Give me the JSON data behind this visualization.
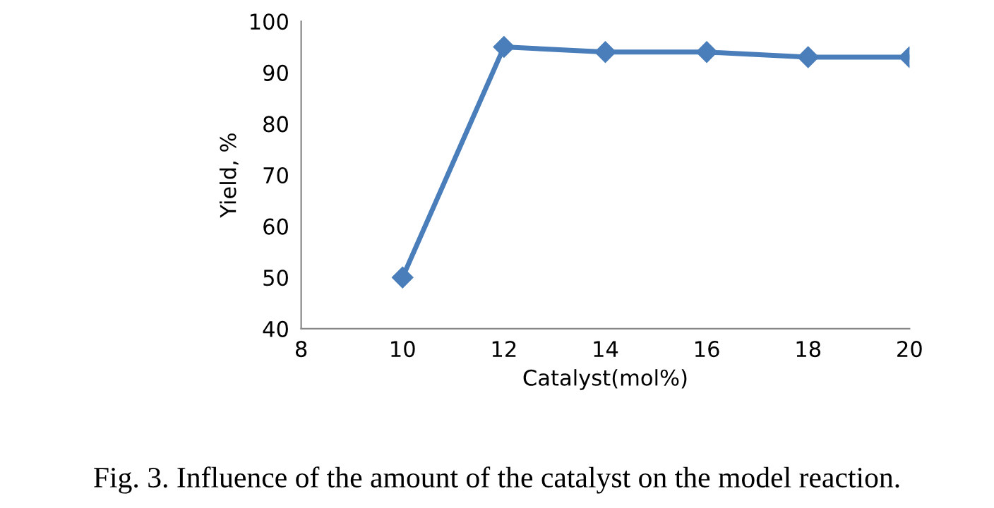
{
  "chart_data": {
    "type": "line",
    "xlabel": "Catalyst(mol%)",
    "ylabel": "Yield, %",
    "x": [
      10,
      12,
      14,
      16,
      18,
      20
    ],
    "series": [
      {
        "color": "#4a7ebb",
        "values": [
          50,
          95,
          94,
          94,
          93,
          93
        ]
      }
    ],
    "xlim": [
      8,
      20
    ],
    "xticks": [
      8,
      10,
      12,
      14,
      16,
      18,
      20
    ],
    "ylim": [
      40,
      100
    ],
    "yticks": [
      40,
      50,
      60,
      70,
      80,
      90,
      100
    ],
    "marker": "diamond",
    "line_style": "solid",
    "grid": false,
    "annotations": [
      "Fig. 3. Influence of the amount of the catalyst on the model reaction."
    ]
  }
}
